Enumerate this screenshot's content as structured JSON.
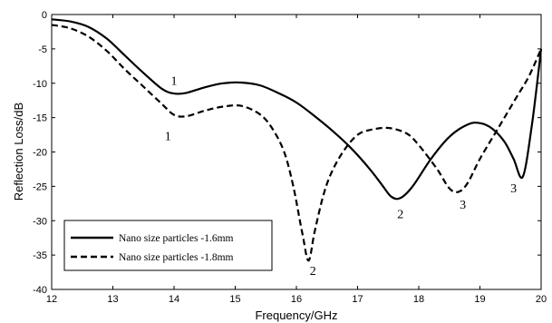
{
  "chart_data": {
    "type": "line",
    "title": "",
    "xlabel": "Frequency/GHz",
    "ylabel": "Reflection Loss/dB",
    "xlim": [
      12,
      20
    ],
    "ylim": [
      -40,
      0
    ],
    "xticks": [
      "12",
      "13",
      "14",
      "15",
      "16",
      "17",
      "18",
      "19",
      "20"
    ],
    "yticks": [
      "0",
      "-5",
      "-10",
      "-15",
      "-20",
      "-25",
      "-30",
      "-35",
      "-40"
    ],
    "grid": false,
    "legend_position": "bottom-left",
    "series": [
      {
        "name": "Nano size particles -1.6mm",
        "style": "solid",
        "color": "#000000",
        "x": [
          12.0,
          12.3,
          12.6,
          12.9,
          13.2,
          13.5,
          13.8,
          14.0,
          14.2,
          14.5,
          14.8,
          15.1,
          15.4,
          15.7,
          16.0,
          16.3,
          16.6,
          16.9,
          17.2,
          17.4,
          17.55,
          17.7,
          17.9,
          18.2,
          18.5,
          18.8,
          19.0,
          19.2,
          19.4,
          19.55,
          19.7,
          19.85,
          20.0
        ],
        "y": [
          -0.7,
          -1.0,
          -1.8,
          -3.5,
          -6.0,
          -8.5,
          -10.8,
          -11.5,
          -11.4,
          -10.6,
          -10.0,
          -9.9,
          -10.3,
          -11.4,
          -12.8,
          -14.8,
          -17.0,
          -19.5,
          -22.5,
          -24.8,
          -26.5,
          -26.7,
          -25.0,
          -21.0,
          -17.8,
          -16.0,
          -15.8,
          -16.6,
          -18.5,
          -21.0,
          -23.6,
          -16.0,
          -5.0
        ]
      },
      {
        "name": "Nano size particles -1.8mm",
        "style": "dashed",
        "color": "#000000",
        "x": [
          12.0,
          12.3,
          12.6,
          12.9,
          13.2,
          13.5,
          13.8,
          14.0,
          14.2,
          14.5,
          14.8,
          15.1,
          15.4,
          15.6,
          15.8,
          15.95,
          16.1,
          16.2,
          16.3,
          16.45,
          16.6,
          16.8,
          17.0,
          17.2,
          17.5,
          17.8,
          18.0,
          18.3,
          18.5,
          18.65,
          18.8,
          19.0,
          19.3,
          19.6,
          19.8,
          20.0
        ],
        "y": [
          -1.5,
          -2.0,
          -3.2,
          -5.3,
          -8.0,
          -10.5,
          -13.0,
          -14.6,
          -14.8,
          -14.0,
          -13.4,
          -13.3,
          -14.5,
          -16.5,
          -20.0,
          -25.0,
          -32.0,
          -35.8,
          -31.5,
          -26.0,
          -22.5,
          -19.5,
          -17.5,
          -16.8,
          -16.5,
          -17.3,
          -19.0,
          -22.5,
          -25.3,
          -25.8,
          -24.5,
          -21.0,
          -16.5,
          -12.0,
          -9.0,
          -5.0
        ]
      }
    ],
    "legend_entries": [
      "Nano size particles -1.6mm",
      "Nano size particles -1.8mm"
    ],
    "annotations": [
      {
        "text": "1",
        "x": 14.0,
        "y": -9.6,
        "series": 0
      },
      {
        "text": "1",
        "x": 13.9,
        "y": -17.6,
        "series": 1
      },
      {
        "text": "2",
        "x": 16.27,
        "y": -37.2,
        "series": 1
      },
      {
        "text": "2",
        "x": 17.7,
        "y": -29.0,
        "series": 0
      },
      {
        "text": "3",
        "x": 18.72,
        "y": -27.6,
        "series": 1
      },
      {
        "text": "3",
        "x": 19.55,
        "y": -25.2,
        "series": 0
      }
    ]
  }
}
